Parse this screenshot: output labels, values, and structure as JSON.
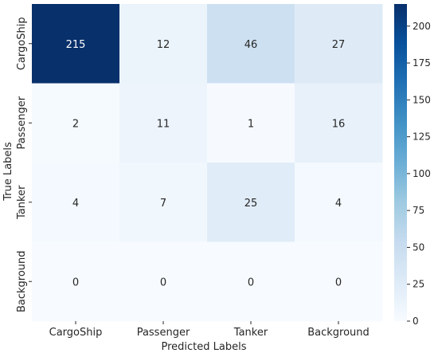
{
  "chart_data": {
    "type": "heatmap",
    "title": "",
    "xlabel": "Predicted Labels",
    "ylabel": "True Labels",
    "x_categories": [
      "CargoShip",
      "Passenger",
      "Tanker",
      "Background"
    ],
    "y_categories": [
      "CargoShip",
      "Passenger",
      "Tanker",
      "Background"
    ],
    "values": [
      [
        215,
        12,
        46,
        27
      ],
      [
        2,
        11,
        1,
        16
      ],
      [
        4,
        7,
        25,
        4
      ],
      [
        0,
        0,
        0,
        0
      ]
    ],
    "colorbar": {
      "min": 0,
      "max": 215,
      "ticks": [
        0,
        25,
        50,
        75,
        100,
        125,
        150,
        175,
        200
      ],
      "colormap": "Blues",
      "low_color": "#f7fbff",
      "high_color": "#08306b"
    },
    "grid": false,
    "legend": "none"
  }
}
